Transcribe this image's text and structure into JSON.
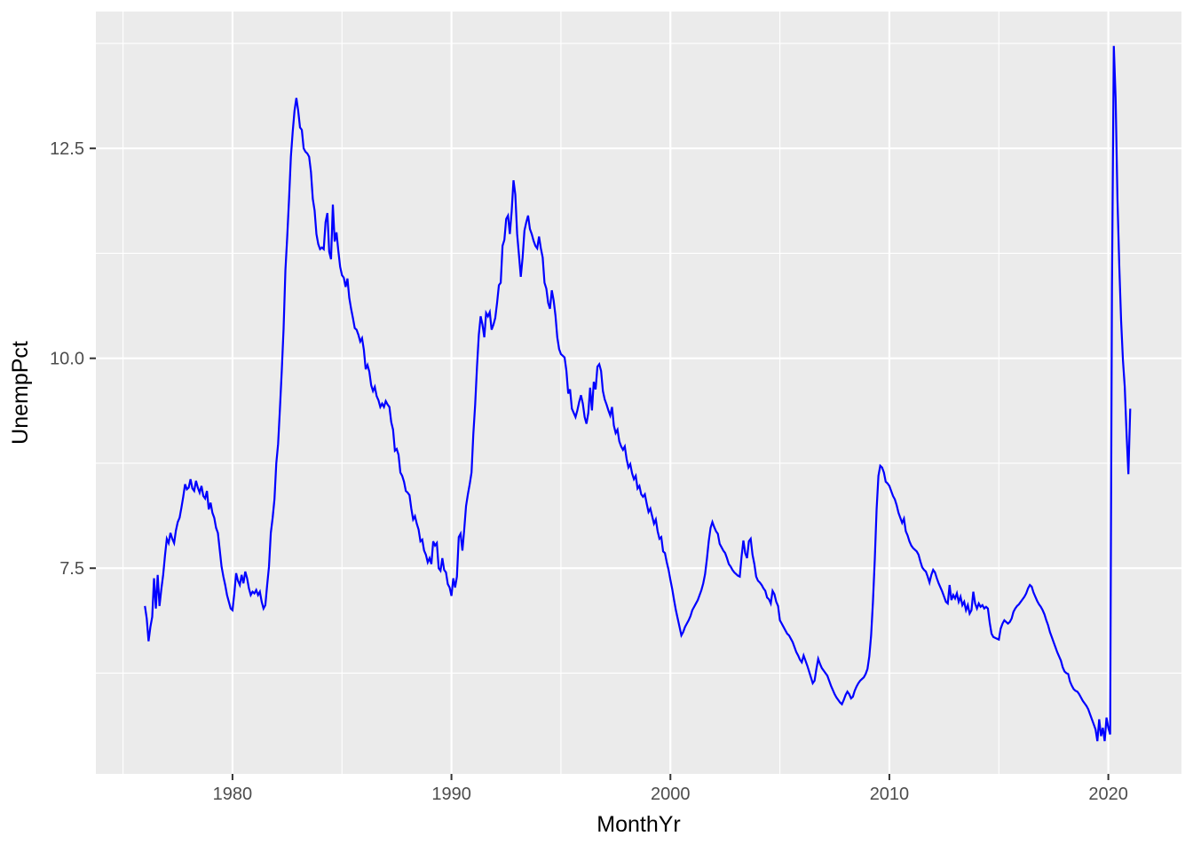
{
  "chart_data": {
    "type": "line",
    "title": "",
    "xlabel": "MonthYr",
    "ylabel": "UnempPct",
    "series": [
      {
        "name": "UnempPct",
        "color": "#0000FF"
      }
    ],
    "x_start_year": 1976,
    "points_per_year": 12,
    "x_domain": [
      1973.76,
      2023.34
    ],
    "y_domain": [
      5.05,
      14.13
    ],
    "x_ticks": [
      {
        "value": 1980,
        "label": "1980"
      },
      {
        "value": 1990,
        "label": "1990"
      },
      {
        "value": 2000,
        "label": "2000"
      },
      {
        "value": 2010,
        "label": "2010"
      },
      {
        "value": 2020,
        "label": "2020"
      }
    ],
    "x_minor_ticks": [
      1975,
      1985,
      1995,
      2005,
      2015
    ],
    "y_ticks": [
      {
        "value": 7.5,
        "label": "7.5"
      },
      {
        "value": 10.0,
        "label": "10.0"
      },
      {
        "value": 12.5,
        "label": "12.5"
      }
    ],
    "y_minor_ticks": [
      6.25,
      8.75,
      11.25,
      13.75
    ],
    "grid": true,
    "legend_position": "none",
    "colors": {
      "line": "#0000FF",
      "panel_bg": "#EBEBEB",
      "grid_major": "#FFFFFF",
      "grid_minor": "#FFFFFF",
      "tick_mark": "#333333",
      "tick_label": "#4D4D4D",
      "axis_title": "#000000",
      "background": "#FFFFFF"
    },
    "values": [
      7.05,
      6.9,
      6.63,
      6.8,
      6.92,
      7.38,
      7.02,
      7.42,
      7.05,
      7.25,
      7.42,
      7.65,
      7.85,
      7.8,
      7.92,
      7.85,
      7.8,
      7.95,
      8.05,
      8.1,
      8.22,
      8.35,
      8.5,
      8.44,
      8.46,
      8.56,
      8.45,
      8.42,
      8.54,
      8.46,
      8.4,
      8.48,
      8.36,
      8.33,
      8.42,
      8.2,
      8.28,
      8.16,
      8.1,
      7.98,
      7.92,
      7.72,
      7.52,
      7.4,
      7.3,
      7.18,
      7.1,
      7.02,
      7.0,
      7.2,
      7.44,
      7.35,
      7.3,
      7.42,
      7.32,
      7.46,
      7.38,
      7.26,
      7.18,
      7.22,
      7.2,
      7.24,
      7.18,
      7.22,
      7.1,
      7.02,
      7.06,
      7.3,
      7.52,
      7.92,
      8.1,
      8.32,
      8.75,
      8.98,
      9.4,
      9.85,
      10.35,
      11.05,
      11.45,
      11.9,
      12.4,
      12.7,
      12.95,
      13.1,
      12.95,
      12.75,
      12.72,
      12.5,
      12.46,
      12.44,
      12.4,
      12.22,
      11.9,
      11.76,
      11.48,
      11.36,
      11.3,
      11.32,
      11.3,
      11.62,
      11.73,
      11.27,
      11.18,
      11.83,
      11.39,
      11.5,
      11.28,
      11.09,
      10.99,
      10.96,
      10.85,
      10.95,
      10.72,
      10.59,
      10.48,
      10.36,
      10.34,
      10.28,
      10.2,
      10.24,
      10.1,
      9.87,
      9.92,
      9.84,
      9.68,
      9.61,
      9.66,
      9.55,
      9.5,
      9.42,
      9.46,
      9.42,
      9.49,
      9.45,
      9.42,
      9.24,
      9.15,
      8.9,
      8.92,
      8.85,
      8.64,
      8.6,
      8.53,
      8.42,
      8.4,
      8.37,
      8.21,
      8.08,
      8.12,
      8.03,
      7.96,
      7.82,
      7.84,
      7.71,
      7.66,
      7.57,
      7.62,
      7.55,
      7.82,
      7.77,
      7.8,
      7.5,
      7.47,
      7.62,
      7.48,
      7.45,
      7.31,
      7.27,
      7.17,
      7.38,
      7.27,
      7.4,
      7.87,
      7.91,
      7.71,
      7.96,
      8.24,
      8.38,
      8.5,
      8.64,
      9.1,
      9.45,
      9.9,
      10.28,
      10.5,
      10.4,
      10.25,
      10.54,
      10.5,
      10.55,
      10.34,
      10.4,
      10.48,
      10.66,
      10.87,
      10.9,
      11.34,
      11.41,
      11.66,
      11.7,
      11.48,
      11.75,
      12.12,
      11.95,
      11.48,
      11.23,
      10.97,
      11.2,
      11.52,
      11.62,
      11.7,
      11.54,
      11.48,
      11.4,
      11.34,
      11.31,
      11.45,
      11.31,
      11.2,
      10.9,
      10.83,
      10.66,
      10.59,
      10.81,
      10.69,
      10.51,
      10.25,
      10.11,
      10.05,
      10.03,
      10.01,
      9.85,
      9.58,
      9.63,
      9.4,
      9.35,
      9.3,
      9.38,
      9.48,
      9.56,
      9.46,
      9.3,
      9.22,
      9.35,
      9.65,
      9.38,
      9.72,
      9.63,
      9.9,
      9.93,
      9.85,
      9.61,
      9.51,
      9.45,
      9.38,
      9.32,
      9.42,
      9.2,
      9.11,
      9.15,
      9.01,
      8.95,
      8.91,
      8.95,
      8.8,
      8.7,
      8.74,
      8.63,
      8.56,
      8.6,
      8.45,
      8.48,
      8.38,
      8.35,
      8.38,
      8.27,
      8.17,
      8.21,
      8.12,
      8.03,
      8.08,
      7.94,
      7.85,
      7.87,
      7.7,
      7.68,
      7.57,
      7.48,
      7.36,
      7.25,
      7.12,
      7.0,
      6.9,
      6.8,
      6.7,
      6.74,
      6.8,
      6.84,
      6.88,
      6.93,
      7.0,
      7.04,
      7.08,
      7.12,
      7.18,
      7.24,
      7.32,
      7.43,
      7.61,
      7.82,
      7.98,
      8.05,
      7.99,
      7.94,
      7.91,
      7.79,
      7.75,
      7.71,
      7.68,
      7.62,
      7.55,
      7.52,
      7.48,
      7.45,
      7.43,
      7.41,
      7.4,
      7.64,
      7.83,
      7.68,
      7.62,
      7.82,
      7.85,
      7.66,
      7.55,
      7.4,
      7.35,
      7.33,
      7.3,
      7.26,
      7.23,
      7.15,
      7.13,
      7.08,
      7.23,
      7.19,
      7.1,
      7.05,
      6.88,
      6.84,
      6.8,
      6.76,
      6.72,
      6.7,
      6.66,
      6.62,
      6.56,
      6.5,
      6.46,
      6.41,
      6.38,
      6.46,
      6.4,
      6.34,
      6.27,
      6.2,
      6.13,
      6.16,
      6.3,
      6.42,
      6.36,
      6.31,
      6.28,
      6.25,
      6.22,
      6.16,
      6.1,
      6.05,
      6.0,
      5.96,
      5.93,
      5.9,
      5.88,
      5.93,
      5.99,
      6.03,
      6.0,
      5.95,
      5.97,
      6.04,
      6.09,
      6.13,
      6.16,
      6.18,
      6.2,
      6.24,
      6.3,
      6.45,
      6.7,
      7.1,
      7.6,
      8.2,
      8.6,
      8.72,
      8.7,
      8.64,
      8.53,
      8.51,
      8.48,
      8.42,
      8.36,
      8.32,
      8.25,
      8.16,
      8.1,
      8.04,
      8.09,
      7.94,
      7.89,
      7.82,
      7.77,
      7.74,
      7.72,
      7.7,
      7.66,
      7.58,
      7.51,
      7.48,
      7.46,
      7.4,
      7.33,
      7.42,
      7.48,
      7.45,
      7.38,
      7.32,
      7.27,
      7.22,
      7.16,
      7.1,
      7.08,
      7.3,
      7.12,
      7.18,
      7.14,
      7.2,
      7.1,
      7.16,
      7.06,
      7.1,
      7.0,
      7.06,
      6.96,
      7.0,
      7.22,
      7.08,
      7.02,
      7.08,
      7.04,
      7.06,
      7.02,
      7.04,
      7.02,
      6.85,
      6.72,
      6.68,
      6.67,
      6.66,
      6.65,
      6.78,
      6.84,
      6.88,
      6.86,
      6.84,
      6.86,
      6.9,
      6.98,
      7.02,
      7.05,
      7.07,
      7.1,
      7.13,
      7.16,
      7.2,
      7.26,
      7.3,
      7.28,
      7.21,
      7.16,
      7.11,
      7.07,
      7.04,
      7.0,
      6.95,
      6.88,
      6.82,
      6.74,
      6.68,
      6.62,
      6.56,
      6.5,
      6.45,
      6.4,
      6.32,
      6.27,
      6.25,
      6.24,
      6.15,
      6.1,
      6.06,
      6.04,
      6.03,
      6.0,
      5.96,
      5.92,
      5.89,
      5.86,
      5.82,
      5.76,
      5.7,
      5.64,
      5.58,
      5.44,
      5.7,
      5.5,
      5.6,
      5.44,
      5.72,
      5.6,
      5.52,
      10.85,
      13.72,
      13.1,
      11.9,
      11.1,
      10.45,
      9.98,
      9.66,
      9.1,
      8.62,
      9.4
    ]
  },
  "layout_note": {
    "panel": "grey panel with white major/minor gridlines, blue data line"
  }
}
